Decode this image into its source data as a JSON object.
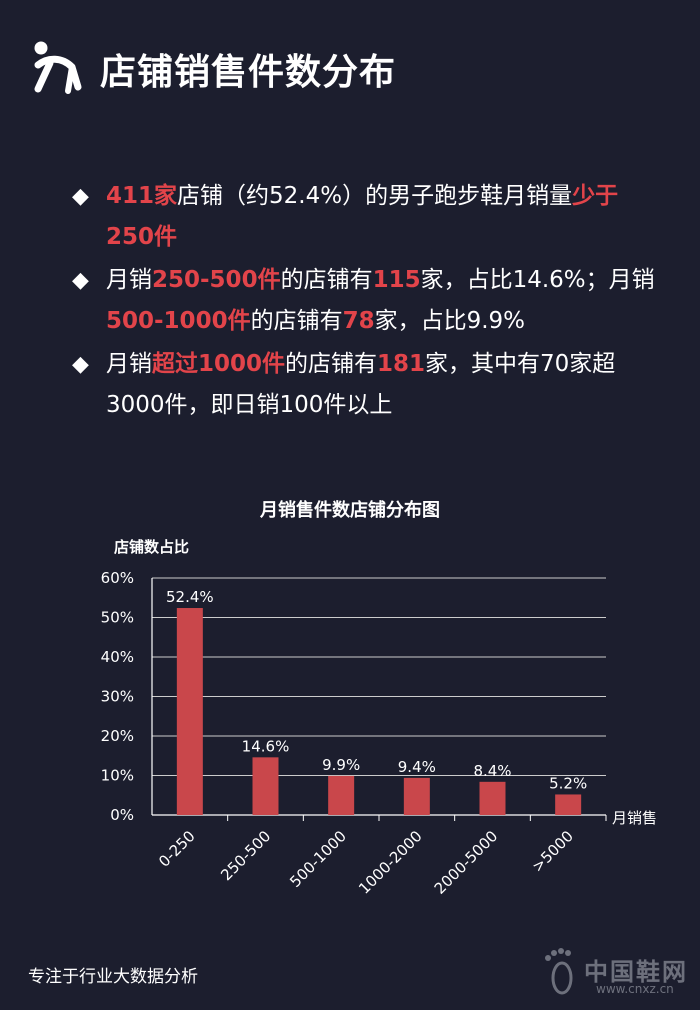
{
  "header": {
    "title": "店铺销售件数分布",
    "icon": "runner-icon"
  },
  "bullets": [
    {
      "parts": [
        {
          "text": "411家",
          "hl": true
        },
        {
          "text": "店铺（约52.4%）的男子跑步鞋月销量",
          "hl": false
        },
        {
          "text": "少于250件",
          "hl": true
        }
      ]
    },
    {
      "parts": [
        {
          "text": "月销",
          "hl": false
        },
        {
          "text": "250-500件",
          "hl": true
        },
        {
          "text": "的店铺有",
          "hl": false
        },
        {
          "text": "115",
          "hl": true
        },
        {
          "text": "家，占比14.6%；月销",
          "hl": false
        },
        {
          "text": "500-1000件",
          "hl": true
        },
        {
          "text": "的店铺有",
          "hl": false
        },
        {
          "text": "78",
          "hl": true
        },
        {
          "text": "家，占比9.9%",
          "hl": false
        }
      ]
    },
    {
      "parts": [
        {
          "text": "月销",
          "hl": false
        },
        {
          "text": "超过1000件",
          "hl": true
        },
        {
          "text": "的店铺有",
          "hl": false
        },
        {
          "text": "181",
          "hl": true
        },
        {
          "text": "家，其中有70家超3000件，即日销100件以上",
          "hl": false
        }
      ]
    }
  ],
  "bullet_marker": "◆",
  "colors": {
    "background": "#1c1e2e",
    "highlight": "#e2444a",
    "bar": "#c9474b",
    "grid": "#cccccc"
  },
  "chart_data": {
    "type": "bar",
    "title": "月销售件数店铺分布图",
    "ylabel": "店铺数占比",
    "xlabel": "月销售",
    "categories": [
      "0-250",
      "250-500",
      "500-1000",
      "1000-2000",
      "2000-5000",
      ">5000"
    ],
    "values": [
      52.4,
      14.6,
      9.9,
      9.4,
      8.4,
      5.2
    ],
    "data_labels": [
      "52.4%",
      "14.6%",
      "9.9%",
      "9.4%",
      "8.4%",
      "5.2%"
    ],
    "ylim": [
      0,
      60
    ],
    "yticks": [
      "0%",
      "10%",
      "20%",
      "30%",
      "40%",
      "50%",
      "60%"
    ],
    "grid": true,
    "legend": "none"
  },
  "footer": {
    "text": "专注于行业大数据分析"
  },
  "watermark": {
    "text": "中国鞋网",
    "url": "www.cnxz.cn"
  }
}
